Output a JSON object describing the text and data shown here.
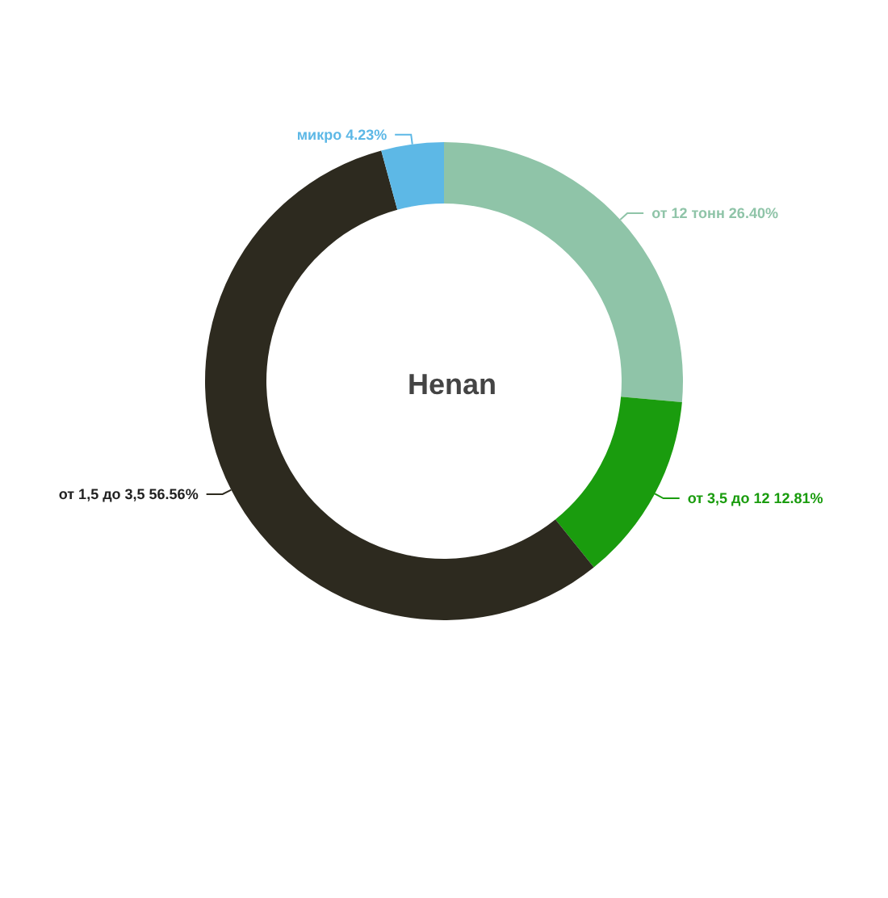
{
  "chart_data": {
    "type": "donut",
    "title": "Henan",
    "categories": [
      "от 12 тонн",
      "от 3,5 до 12",
      "от 1,5 до 3,5",
      "микро"
    ],
    "values": [
      26.4,
      12.81,
      56.56,
      4.23
    ],
    "value_labels": [
      "26.40%",
      "12.81%",
      "56.56%",
      "4.23%"
    ],
    "colors": [
      "#8fc4a8",
      "#1a9c0e",
      "#2d2a1f",
      "#5db8e6"
    ],
    "legend": false
  }
}
